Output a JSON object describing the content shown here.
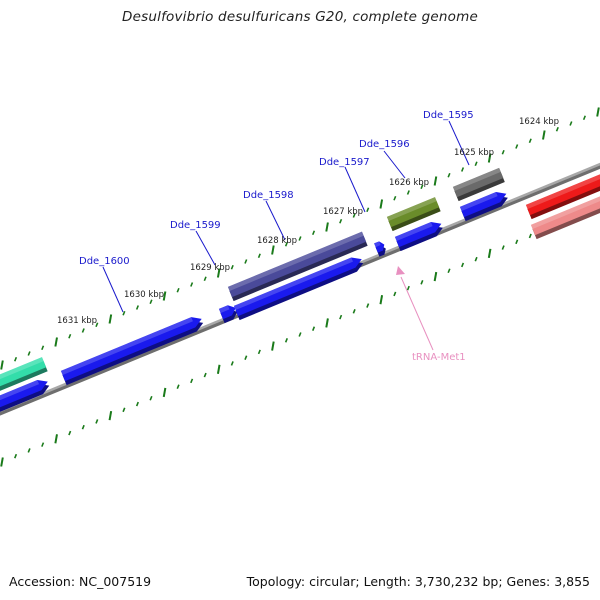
{
  "title": "Desulfovibrio desulfuricans G20, complete genome",
  "footer": {
    "accession": "Accession: NC_007519",
    "summary": "Topology: circular; Length: 3,730,232 bp; Genes: 3,855"
  },
  "colors": {
    "background": "#ffffff",
    "backbone": "#8c8c8c",
    "tick": "#1a7a1a",
    "label_blue": "#1a1acc",
    "trna": "#e890c0",
    "gene_blue": "#1a1aee",
    "gene_purple": "#4a4a9a",
    "gene_olive": "#6a8c2a",
    "gene_gray": "#6a6a6a",
    "gene_red": "#ee1a1a",
    "gene_pink": "#ee8a8a",
    "gene_teal": "#33ddaa"
  },
  "scale_labels": [
    "1624 kbp",
    "1625 kbp",
    "1626 kbp",
    "1627 kbp",
    "1628 kbp",
    "1629 kbp",
    "1630 kbp",
    "1631 kbp"
  ],
  "gene_labels": [
    "Dde_1595",
    "Dde_1596",
    "Dde_1597",
    "Dde_1598",
    "Dde_1599",
    "Dde_1600"
  ],
  "trna_label": "tRNA-Met1"
}
